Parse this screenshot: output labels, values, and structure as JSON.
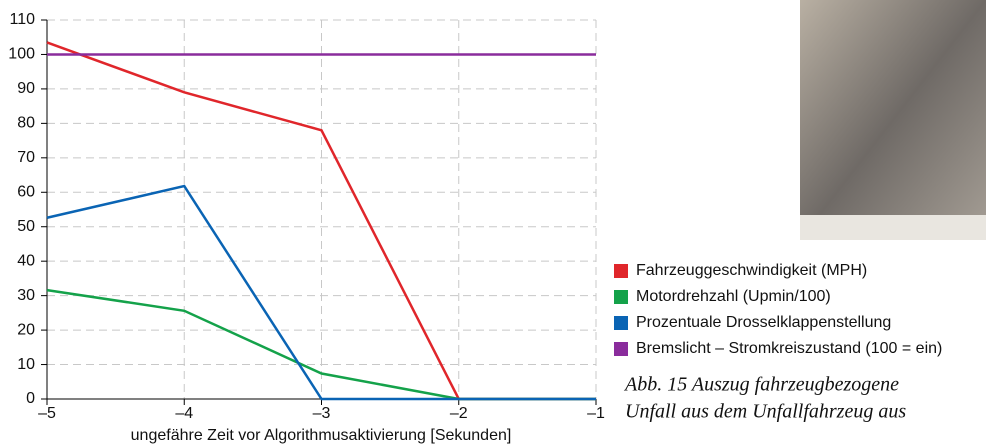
{
  "chart_data": {
    "type": "line",
    "x": [
      -5,
      -4,
      -3,
      -2,
      -1
    ],
    "xlim": [
      -5,
      -1
    ],
    "xticks": [
      {
        "value": -5,
        "label": "–5"
      },
      {
        "value": -4,
        "label": "–4"
      },
      {
        "value": -3,
        "label": "–3"
      },
      {
        "value": -2,
        "label": "–2"
      },
      {
        "value": -1,
        "label": "–1"
      }
    ],
    "ylim": [
      0,
      110
    ],
    "yticks": [
      0,
      10,
      20,
      30,
      40,
      50,
      60,
      70,
      80,
      90,
      100,
      110
    ],
    "x_label": "ungefähre Zeit vor Algorithmusaktivierung [Sekunden]",
    "grid": true,
    "legend": "right",
    "series": [
      {
        "name": "Fahrzeuggeschwindigkeit (MPH)",
        "color": "#e0262b",
        "values": [
          103.5,
          89,
          78,
          0,
          0
        ]
      },
      {
        "name": "Motordrehzahl (Upmin/100)",
        "color": "#14a24a",
        "values": [
          31.6,
          25.6,
          7.4,
          0,
          0
        ]
      },
      {
        "name": "Prozentuale Drosselklappenstellung",
        "color": "#0a64b4",
        "values": [
          52.6,
          61.8,
          0,
          0,
          0
        ]
      },
      {
        "name": "Bremslicht – Stromkreiszustand (100 = ein)",
        "color": "#8a2c9c",
        "values": [
          100,
          100,
          100,
          100,
          100
        ]
      }
    ],
    "annotations": [
      "Abb. 15  Auszug fahrzeugbezogene",
      "Unfall aus dem Unfallfahrzeug aus"
    ]
  }
}
